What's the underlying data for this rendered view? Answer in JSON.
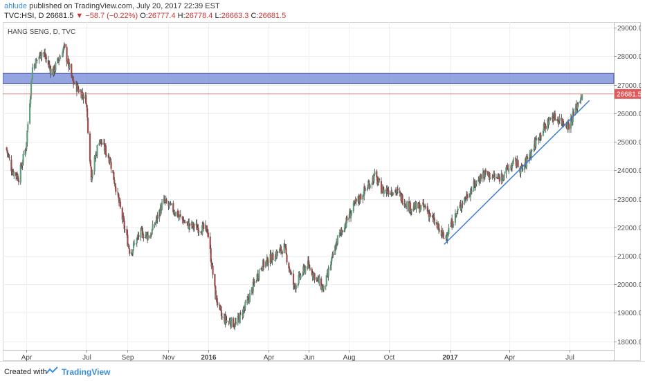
{
  "header": {
    "author": "ahlude",
    "published_text": "published on TradingView.com, July 20, 2017 22:39 EST",
    "symbol": "TVC:HSI, D",
    "last": "26681.5",
    "change": "▼ −58.7 (−0.22%)",
    "o_label": "O:",
    "o_value": "26777.4",
    "h_label": "H:",
    "h_value": "26778.4",
    "l_label": "L:",
    "l_value": "26663.3",
    "c_label": "C:",
    "c_value": "26681.5"
  },
  "chart_data": {
    "type": "candlestick",
    "title": "HANG SENG, D, TVC",
    "ylim": [
      17700,
      29200
    ],
    "y_ticks": [
      "18000.0",
      "19000.0",
      "20000.0",
      "21000.0",
      "22000.0",
      "23000.0",
      "24000.0",
      "25000.0",
      "26000.0",
      "27000.0",
      "28000.0",
      "29000.0"
    ],
    "x_ticks": [
      "Apr",
      "Jul",
      "Sep",
      "Nov",
      "2016",
      "Apr",
      "Jun",
      "Aug",
      "Oct",
      "2017",
      "Apr",
      "Jul"
    ],
    "grid": true,
    "last_price_label": "26681.5",
    "resistance_zone": [
      27050,
      27400
    ],
    "trendline_start": {
      "date": "2016-12-23",
      "price": 21400
    },
    "trendline_end": {
      "date": "2017-07-31",
      "price": 26450
    },
    "price_path": [
      {
        "date": "2015-03-01",
        "price": 24800
      },
      {
        "date": "2015-03-10",
        "price": 24000
      },
      {
        "date": "2015-03-20",
        "price": 23750
      },
      {
        "date": "2015-03-31",
        "price": 24800
      },
      {
        "date": "2015-04-10",
        "price": 27600
      },
      {
        "date": "2015-04-25",
        "price": 28200
      },
      {
        "date": "2015-05-10",
        "price": 27400
      },
      {
        "date": "2015-05-28",
        "price": 28300
      },
      {
        "date": "2015-06-10",
        "price": 27100
      },
      {
        "date": "2015-06-30",
        "price": 26500
      },
      {
        "date": "2015-07-08",
        "price": 23800
      },
      {
        "date": "2015-07-20",
        "price": 25100
      },
      {
        "date": "2015-08-05",
        "price": 24400
      },
      {
        "date": "2015-08-25",
        "price": 22200
      },
      {
        "date": "2015-09-05",
        "price": 21100
      },
      {
        "date": "2015-09-20",
        "price": 21800
      },
      {
        "date": "2015-10-05",
        "price": 21700
      },
      {
        "date": "2015-10-25",
        "price": 22900
      },
      {
        "date": "2015-11-05",
        "price": 22700
      },
      {
        "date": "2015-11-30",
        "price": 22100
      },
      {
        "date": "2015-12-15",
        "price": 22000
      },
      {
        "date": "2015-12-31",
        "price": 21900
      },
      {
        "date": "2016-01-12",
        "price": 19600
      },
      {
        "date": "2016-01-22",
        "price": 18800
      },
      {
        "date": "2016-02-12",
        "price": 18600
      },
      {
        "date": "2016-02-28",
        "price": 19300
      },
      {
        "date": "2016-03-20",
        "price": 20600
      },
      {
        "date": "2016-04-25",
        "price": 21300
      },
      {
        "date": "2016-05-10",
        "price": 19900
      },
      {
        "date": "2016-05-30",
        "price": 20700
      },
      {
        "date": "2016-06-24",
        "price": 19800
      },
      {
        "date": "2016-07-15",
        "price": 21600
      },
      {
        "date": "2016-08-10",
        "price": 22800
      },
      {
        "date": "2016-09-09",
        "price": 23800
      },
      {
        "date": "2016-09-20",
        "price": 23300
      },
      {
        "date": "2016-10-10",
        "price": 23300
      },
      {
        "date": "2016-11-01",
        "price": 22700
      },
      {
        "date": "2016-11-25",
        "price": 22700
      },
      {
        "date": "2016-12-23",
        "price": 21600
      },
      {
        "date": "2017-01-20",
        "price": 22900
      },
      {
        "date": "2017-02-20",
        "price": 23900
      },
      {
        "date": "2017-03-15",
        "price": 23700
      },
      {
        "date": "2017-04-10",
        "price": 24300
      },
      {
        "date": "2017-04-20",
        "price": 24000
      },
      {
        "date": "2017-05-15",
        "price": 25200
      },
      {
        "date": "2017-06-05",
        "price": 25900
      },
      {
        "date": "2017-06-30",
        "price": 25600
      },
      {
        "date": "2017-07-20",
        "price": 26700
      }
    ]
  },
  "footer": {
    "created_with": "Created with",
    "brand": "TradingView"
  }
}
